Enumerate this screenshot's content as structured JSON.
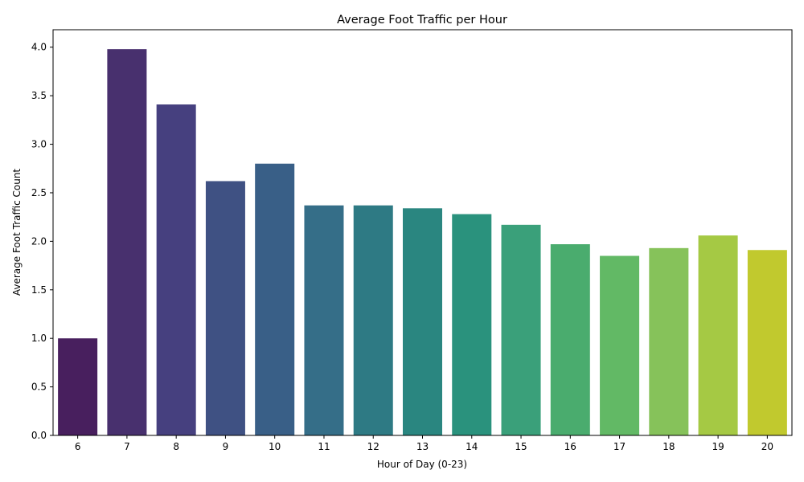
{
  "chart_data": {
    "type": "bar",
    "title": "Average Foot Traffic per Hour",
    "xlabel": "Hour of Day (0-23)",
    "ylabel": "Average Foot Traffic Count",
    "categories": [
      "6",
      "7",
      "8",
      "9",
      "10",
      "11",
      "12",
      "13",
      "14",
      "15",
      "16",
      "17",
      "18",
      "19",
      "20"
    ],
    "values": [
      1.0,
      3.98,
      3.41,
      2.62,
      2.8,
      2.37,
      2.37,
      2.34,
      2.28,
      2.17,
      1.97,
      1.85,
      1.93,
      2.06,
      1.91
    ],
    "colors": [
      "#481f5e",
      "#48306e",
      "#46407f",
      "#3f5183",
      "#395f87",
      "#356e88",
      "#2e7a84",
      "#2a8680",
      "#2a927d",
      "#3aa07a",
      "#4aac6e",
      "#62b965",
      "#86c25a",
      "#a5c944",
      "#c1c92e"
    ],
    "ylim": [
      0,
      4.18
    ],
    "yticks": [
      0.0,
      0.5,
      1.0,
      1.5,
      2.0,
      2.5,
      3.0,
      3.5,
      4.0
    ],
    "ytick_labels": [
      "0.0",
      "0.5",
      "1.0",
      "1.5",
      "2.0",
      "2.5",
      "3.0",
      "3.5",
      "4.0"
    ],
    "grid": false,
    "legend": "none"
  }
}
